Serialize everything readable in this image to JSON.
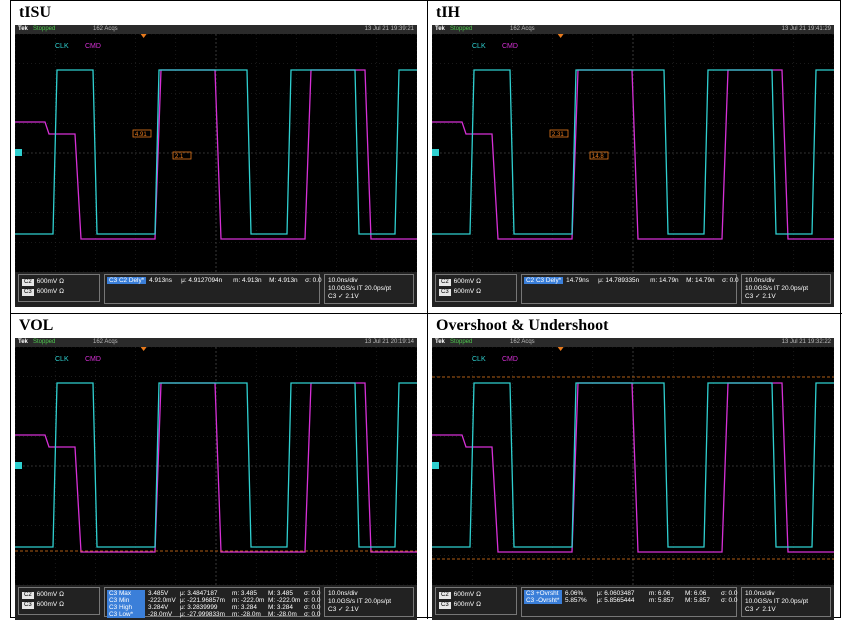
{
  "panels": [
    {
      "title": "tISU",
      "topbar": {
        "brand": "Tek",
        "state": "Stopped",
        "acqs": "162 Acqs",
        "datetime": "13 Jul 21 19:39:21"
      },
      "labels": {
        "clk": "CLK",
        "cmd": "CMD"
      },
      "markers": [
        "4.91",
        "2.1"
      ],
      "channels": [
        {
          "ch": "C2",
          "scale": "600mV Ω"
        },
        {
          "ch": "C3",
          "scale": "600mV Ω"
        }
      ],
      "measurements": [
        {
          "tags": "C3 C2 Dely*",
          "value": "4.913ns",
          "mu": "μ: 4.9127094n",
          "m": "m: 4.913n",
          "M": "M: 4.913n",
          "sigma": "σ: 0.0"
        }
      ],
      "timebase": {
        "div": "10.0ns/div",
        "rate": "10.0GS/s IT 20.0ps/pt",
        "trigger": "C3 ✓ 2.1V"
      }
    },
    {
      "title": "tIH",
      "topbar": {
        "brand": "Tek",
        "state": "Stopped",
        "acqs": "162 Acqs",
        "datetime": "13 Jul 21 19:41:29"
      },
      "labels": {
        "clk": "CLK",
        "cmd": "CMD"
      },
      "markers": [
        "2.31",
        "14.8"
      ],
      "channels": [
        {
          "ch": "C2",
          "scale": "600mV Ω"
        },
        {
          "ch": "C3",
          "scale": "600mV Ω"
        }
      ],
      "measurements": [
        {
          "tags": "C2 C3 Dely*",
          "value": "14.79ns",
          "mu": "μ: 14.789335n",
          "m": "m: 14.79n",
          "M": "M: 14.79n",
          "sigma": "σ: 0.0"
        }
      ],
      "timebase": {
        "div": "10.0ns/div",
        "rate": "10.0GS/s IT 20.0ps/pt",
        "trigger": "C3 ✓ 2.1V"
      }
    },
    {
      "title": "VOL",
      "topbar": {
        "brand": "Tek",
        "state": "Stopped",
        "acqs": "162 Acqs",
        "datetime": "13 Jul 21 20:19:14"
      },
      "labels": {
        "clk": "CLK",
        "cmd": "CMD"
      },
      "markers": [],
      "channels": [
        {
          "ch": "C2",
          "scale": "600mV Ω"
        },
        {
          "ch": "C3",
          "scale": "600mV Ω"
        }
      ],
      "measurements": [
        {
          "tags": "C3 Max",
          "value": "3.485V",
          "mu": "μ: 3.4847187",
          "m": "m: 3.485",
          "M": "M: 3.485",
          "sigma": "σ: 0.0"
        },
        {
          "tags": "C3 Min",
          "value": "-222.0mV",
          "mu": "μ: -221.96857m",
          "m": "m: -222.0m",
          "M": "M: -222.0m",
          "sigma": "σ: 0.0"
        },
        {
          "tags": "C3 High",
          "value": "3.284V",
          "mu": "μ: 3.2839999",
          "m": "m: 3.284",
          "M": "M: 3.284",
          "sigma": "σ: 0.0"
        },
        {
          "tags": "C3 Low*",
          "value": "-28.0mV",
          "mu": "μ: -27.999833m",
          "m": "m: -28.0m",
          "M": "M: -28.0m",
          "sigma": "σ: 0.0"
        }
      ],
      "timebase": {
        "div": "10.0ns/div",
        "rate": "10.0GS/s IT 20.0ps/pt",
        "trigger": "C3 ✓ 2.1V"
      }
    },
    {
      "title": "Overshoot & Undershoot",
      "topbar": {
        "brand": "Tek",
        "state": "Stopped",
        "acqs": "162 Acqs",
        "datetime": "13 Jul 21 19:32:22"
      },
      "labels": {
        "clk": "CLK",
        "cmd": "CMD"
      },
      "markers": [],
      "channels": [
        {
          "ch": "C2",
          "scale": "600mV Ω"
        },
        {
          "ch": "C3",
          "scale": "600mV Ω"
        }
      ],
      "measurements": [
        {
          "tags": "C3 +Ovrsht",
          "value": "6.06%",
          "mu": "μ: 6.0603487",
          "m": "m: 6.06",
          "M": "M: 6.06",
          "sigma": "σ: 0.0"
        },
        {
          "tags": "C3 -Ovrsht*",
          "value": "5.857%",
          "mu": "μ: 5.8565444",
          "m": "m: 5.857",
          "M": "M: 5.857",
          "sigma": "σ: 0.0"
        }
      ],
      "timebase": {
        "div": "10.0ns/div",
        "rate": "10.0GS/s IT 20.0ps/pt",
        "trigger": "C3 ✓ 2.1V"
      }
    }
  ],
  "colors": {
    "clk": "#2fd0d0",
    "cmd": "#d630d6",
    "background": "#000000",
    "marker": "#e87a1c"
  }
}
